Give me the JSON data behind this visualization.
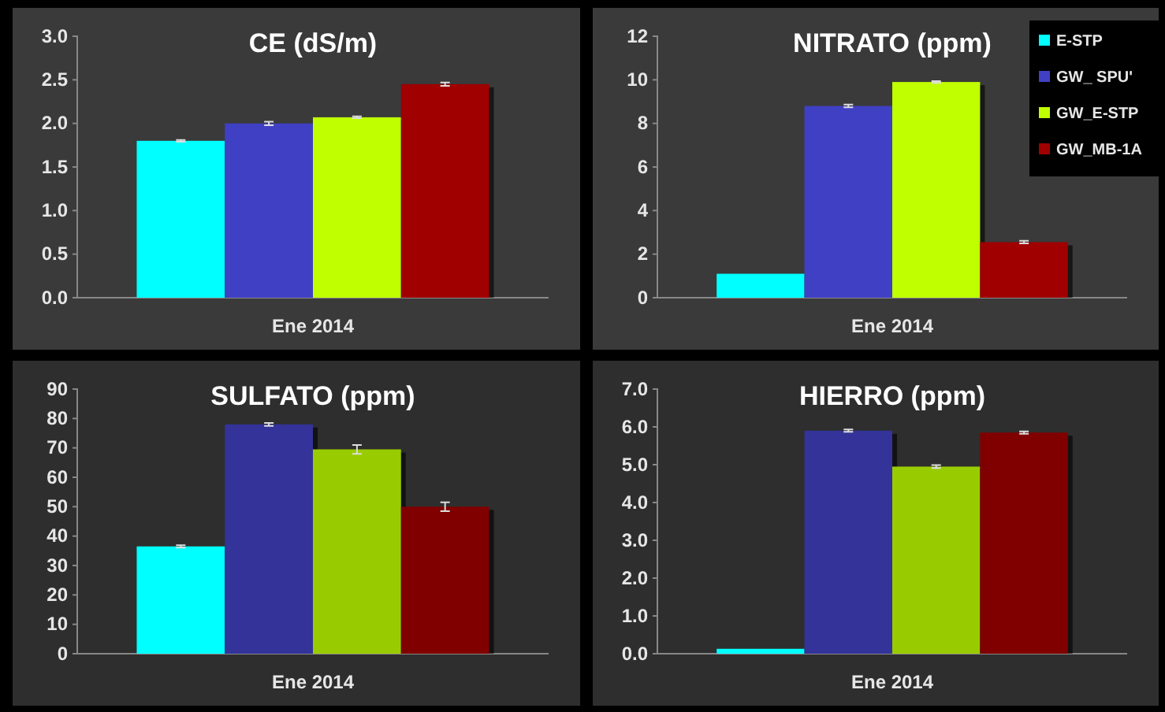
{
  "chart_data": [
    {
      "type": "bar",
      "title": "CE (dS/m)",
      "categories": [
        "Ene 2014"
      ],
      "ylim": [
        0,
        3
      ],
      "yticks": [
        {
          "value": 0,
          "label": "0.0"
        },
        {
          "value": 0.5,
          "label": "0.5"
        },
        {
          "value": 1,
          "label": "1.0"
        },
        {
          "value": 1.5,
          "label": "1.5"
        },
        {
          "value": 2,
          "label": "2.0"
        },
        {
          "value": 2.5,
          "label": "2.5"
        },
        {
          "value": 3,
          "label": "3.0"
        }
      ],
      "grid": false,
      "legend": false,
      "series": [
        {
          "color": "#00ffff",
          "values": [
            1.8
          ],
          "errors": [
            0.01
          ]
        },
        {
          "color": "#4040c4",
          "values": [
            2.0
          ],
          "errors": [
            0.02
          ]
        },
        {
          "color": "#c0ff00",
          "values": [
            2.07
          ],
          "errors": [
            0.01
          ]
        },
        {
          "color": "#a00000",
          "values": [
            2.45
          ],
          "errors": [
            0.02
          ]
        }
      ]
    },
    {
      "type": "bar",
      "title": "NITRATO (ppm)",
      "categories": [
        "Ene 2014"
      ],
      "ylim": [
        0,
        12
      ],
      "yticks": [
        0,
        2,
        4,
        6,
        8,
        10,
        12
      ],
      "grid": false,
      "legend": "top right",
      "series": [
        {
          "name": "E-STP",
          "color": "#00ffff",
          "values": [
            1.1
          ]
        },
        {
          "name": "GW_ SPU'",
          "color": "#4040c4",
          "values": [
            8.8
          ],
          "errors": [
            0.06
          ]
        },
        {
          "name": "GW_E-STP",
          "color": "#c0ff00",
          "values": [
            9.9
          ],
          "errors": [
            0.04
          ]
        },
        {
          "name": "GW_MB-1A",
          "color": "#a00000",
          "values": [
            2.55
          ],
          "errors": [
            0.06
          ]
        }
      ]
    },
    {
      "type": "bar",
      "title": "SULFATO (ppm)",
      "categories": [
        "Ene 2014"
      ],
      "ylim": [
        0,
        90
      ],
      "yticks": [
        0,
        10,
        20,
        30,
        40,
        50,
        60,
        70,
        80,
        90
      ],
      "grid": false,
      "legend": false,
      "series": [
        {
          "color": "#00ffff",
          "values": [
            36.5
          ],
          "errors": [
            0.4
          ]
        },
        {
          "color": "#333399",
          "values": [
            78
          ],
          "errors": [
            0.5
          ]
        },
        {
          "color": "#99cc00",
          "values": [
            69.5
          ],
          "errors": [
            1.5
          ]
        },
        {
          "color": "#800000",
          "values": [
            50
          ],
          "errors": [
            1.5
          ]
        }
      ]
    },
    {
      "type": "bar",
      "title": "HIERRO (ppm)",
      "categories": [
        "Ene 2014"
      ],
      "ylim": [
        0,
        7
      ],
      "yticks": [
        {
          "value": 0,
          "label": "0.0"
        },
        {
          "value": 1,
          "label": "1.0"
        },
        {
          "value": 2,
          "label": "2.0"
        },
        {
          "value": 3,
          "label": "3.0"
        },
        {
          "value": 4,
          "label": "4.0"
        },
        {
          "value": 5,
          "label": "5.0"
        },
        {
          "value": 6,
          "label": "6.0"
        },
        {
          "value": 7,
          "label": "7.0"
        }
      ],
      "grid": false,
      "legend": false,
      "series": [
        {
          "color": "#00ffff",
          "values": [
            0.13
          ]
        },
        {
          "color": "#333399",
          "values": [
            5.9
          ],
          "errors": [
            0.03
          ]
        },
        {
          "color": "#99cc00",
          "values": [
            4.95
          ],
          "errors": [
            0.04
          ]
        },
        {
          "color": "#800000",
          "values": [
            5.85
          ],
          "errors": [
            0.03
          ]
        }
      ]
    }
  ]
}
